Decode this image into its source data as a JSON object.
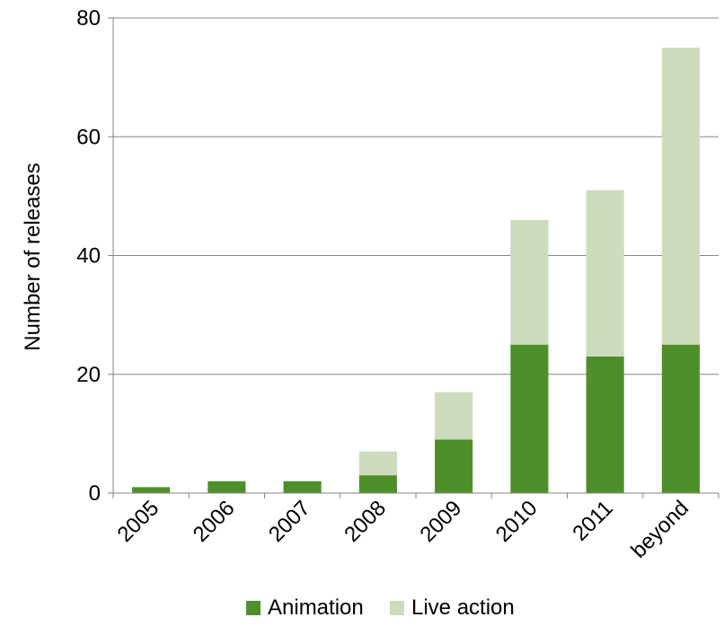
{
  "chart_data": {
    "type": "bar",
    "stacked": true,
    "title": "",
    "xlabel": "",
    "ylabel": "Number of releases",
    "ylim": [
      0,
      80
    ],
    "yticks": [
      0,
      20,
      40,
      60,
      80
    ],
    "grid": true,
    "legend_position": "bottom",
    "categories": [
      "2005",
      "2006",
      "2007",
      "2008",
      "2009",
      "2010",
      "2011",
      "beyond"
    ],
    "series": [
      {
        "name": "Animation",
        "color": "#4e8f2a",
        "values": [
          1,
          2,
          2,
          3,
          9,
          25,
          23,
          25
        ]
      },
      {
        "name": "Live action",
        "color": "#ccdcbc",
        "values": [
          0,
          0,
          0,
          4,
          8,
          21,
          28,
          50
        ]
      }
    ]
  }
}
